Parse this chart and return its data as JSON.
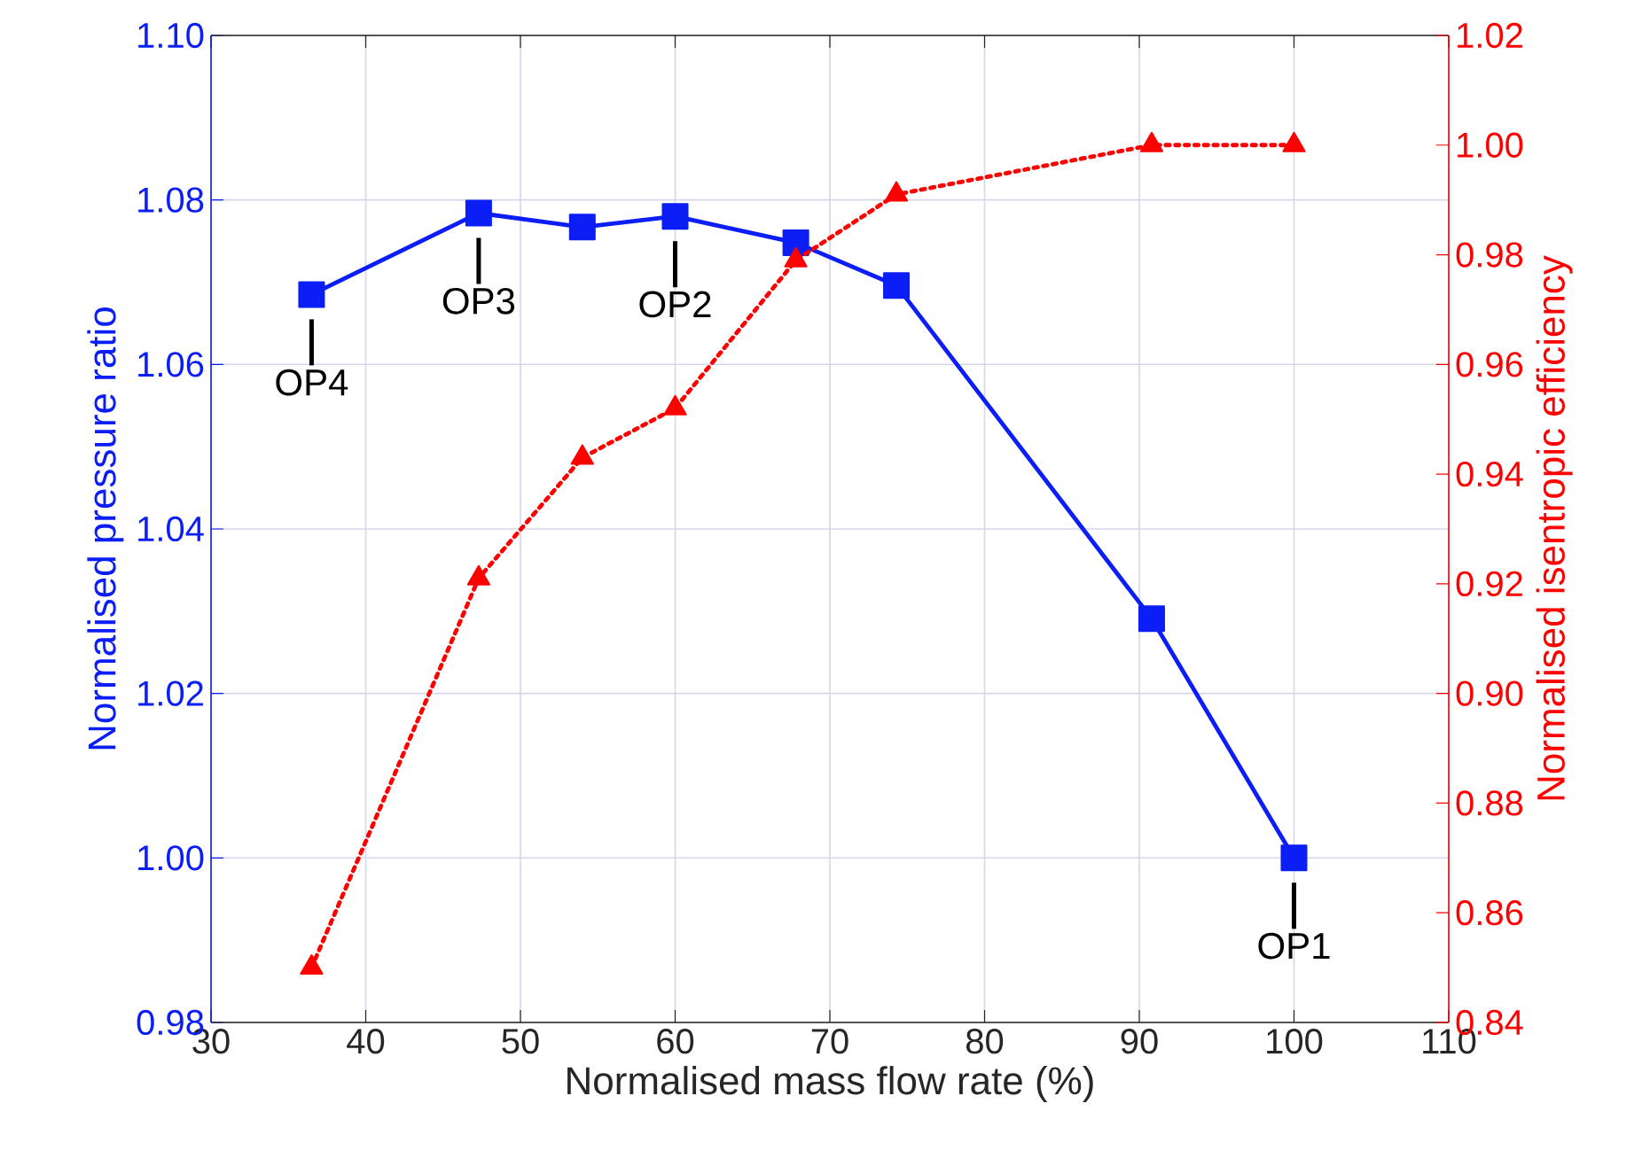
{
  "chart_data": {
    "type": "line",
    "xlabel": "Normalised mass flow rate (%)",
    "ylabel": "Normalised pressure ratio",
    "y2label": "Normalised isentropic efficiency",
    "x": [
      36.5,
      47.3,
      54,
      60,
      67.8,
      74.3,
      90.8,
      100
    ],
    "series": [
      {
        "color": "#0a1ef5",
        "values": [
          1.0685,
          1.0784,
          1.0767,
          1.078,
          1.0748,
          1.0696,
          1.0291,
          1.0
        ],
        "marker": "square",
        "line_style": "solid"
      },
      {
        "color": "#ff0000",
        "values": [
          0.85,
          0.921,
          0.943,
          0.952,
          0.979,
          0.991,
          1.0,
          1.0
        ],
        "marker": "triangle",
        "line_style": "dotted",
        "axis": "y2"
      }
    ],
    "xlim": [
      30,
      110
    ],
    "xticks": [
      30,
      40,
      50,
      60,
      70,
      80,
      90,
      100,
      110
    ],
    "ylim": [
      0.98,
      1.1
    ],
    "yticks": [
      {
        "value": 0.98,
        "label": "0.98"
      },
      {
        "value": 1.0,
        "label": "1.00"
      },
      {
        "value": 1.02,
        "label": "1.02"
      },
      {
        "value": 1.04,
        "label": "1.04"
      },
      {
        "value": 1.06,
        "label": "1.06"
      },
      {
        "value": 1.08,
        "label": "1.08"
      },
      {
        "value": 1.1,
        "label": "1.10"
      }
    ],
    "y2lim": [
      0.84,
      1.02
    ],
    "y2ticks": [
      0.84,
      0.86,
      0.88,
      {
        "value": 0.9,
        "label": "0.90"
      },
      0.92,
      0.94,
      0.96,
      0.98,
      {
        "value": 1.0,
        "label": "1.00"
      },
      1.02
    ],
    "annotations": [
      {
        "text": "OP4",
        "x": 36.5,
        "y": 1.0685
      },
      {
        "text": "OP3",
        "x": 47.3,
        "y": 1.0784
      },
      {
        "text": "OP2",
        "x": 60,
        "y": 1.078
      },
      {
        "text": "OP1",
        "x": 100,
        "y": 1.0
      }
    ],
    "grid": true
  }
}
